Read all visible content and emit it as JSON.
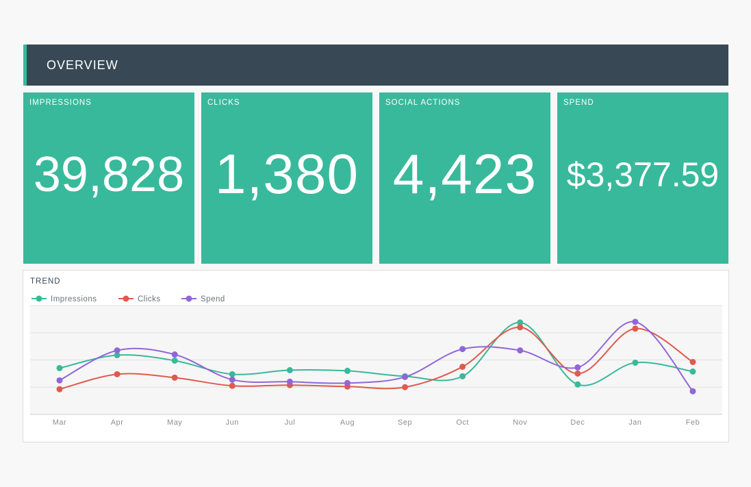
{
  "header": {
    "title": "OVERVIEW",
    "accent_color": "#38b99b",
    "background": "#384955"
  },
  "tiles": [
    {
      "label": "IMPRESSIONS",
      "value": "39,828"
    },
    {
      "label": "CLICKS",
      "value": "1,380"
    },
    {
      "label": "SOCIAL ACTIONS",
      "value": "4,423"
    },
    {
      "label": "SPEND",
      "value": "$3,377.59"
    }
  ],
  "tile_color": "#38b99b",
  "trend": {
    "title": "TREND"
  },
  "chart_data": {
    "type": "line",
    "categories": [
      "Mar",
      "Apr",
      "May",
      "Jun",
      "Jul",
      "Aug",
      "Sep",
      "Oct",
      "Nov",
      "Dec",
      "Jan",
      "Feb"
    ],
    "ylim": [
      0,
      160
    ],
    "grid": true,
    "legend": "top-left",
    "smooth": true,
    "series": [
      {
        "name": "Impressions",
        "color": "#38b99b",
        "values": [
          68,
          87,
          79,
          59,
          65,
          64,
          56,
          56,
          135,
          44,
          76,
          63
        ]
      },
      {
        "name": "Clicks",
        "color": "#e05a4e",
        "values": [
          37,
          59,
          54,
          42,
          43,
          41,
          40,
          70,
          128,
          60,
          126,
          77
        ]
      },
      {
        "name": "Spend",
        "color": "#9066d8",
        "values": [
          50,
          94,
          88,
          51,
          48,
          46,
          55,
          96,
          94,
          69,
          136,
          34
        ]
      }
    ]
  }
}
